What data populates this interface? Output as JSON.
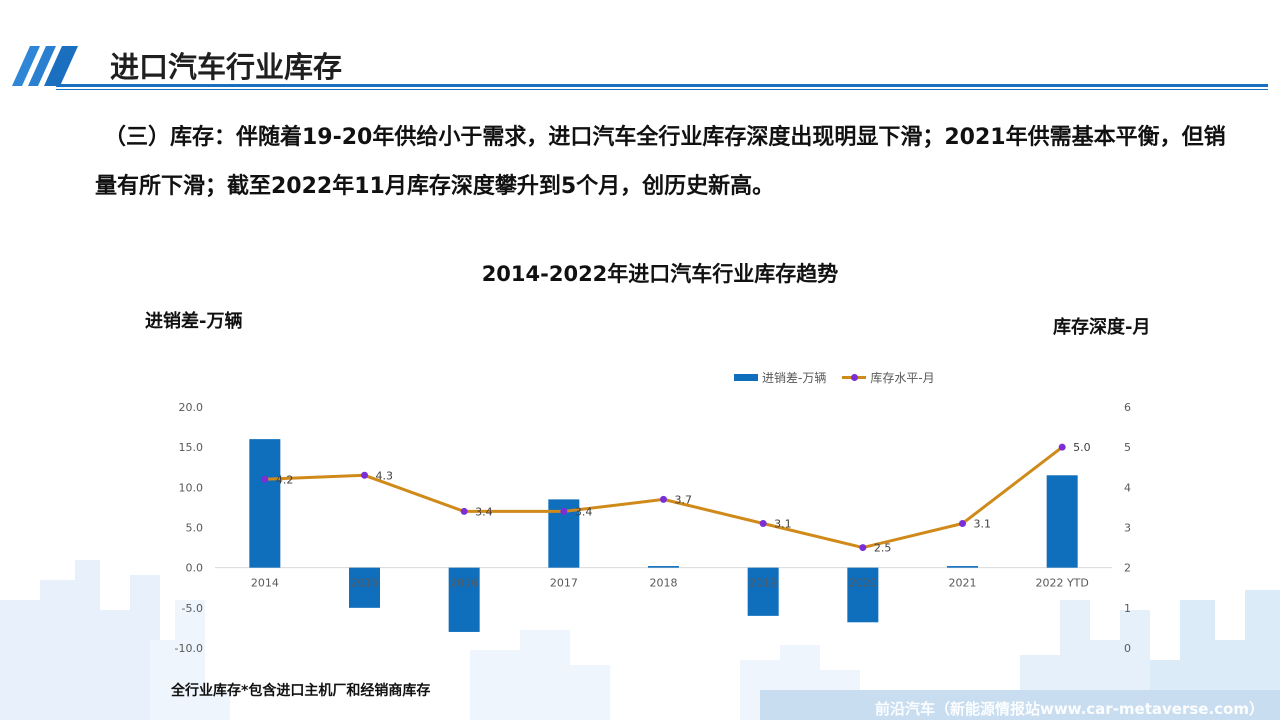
{
  "header": {
    "title": "进口汽车行业库存"
  },
  "summary": {
    "text": "（三）库存：伴随着19-20年供给小于需求，进口汽车全行业库存深度出现明显下滑；2021年供需基本平衡，但销量有所下滑；截至2022年11月库存深度攀升到5个月，创历史新高。"
  },
  "chart_data": {
    "type": "bar",
    "title": "2014-2022年进口汽车行业库存趋势",
    "ylabel": "进销差-万辆",
    "y2label": "库存深度-月",
    "categories": [
      "2014",
      "2015",
      "2016",
      "2017",
      "2018",
      "2019",
      "2020",
      "2021",
      "2022 YTD"
    ],
    "ylim": [
      -10,
      20
    ],
    "y_ticks": [
      "-10.0",
      "-5.0",
      "0.0",
      "5.0",
      "10.0",
      "15.0",
      "20.0"
    ],
    "y2lim": [
      0,
      6
    ],
    "y2_ticks": [
      "0",
      "1",
      "2",
      "3",
      "4",
      "5",
      "6"
    ],
    "legend_position": "top-right",
    "series": [
      {
        "name": "进销差-万辆",
        "type": "bar",
        "color": "#0f6fbd",
        "values": [
          16.0,
          -5.0,
          -8.0,
          8.5,
          0.2,
          -6.0,
          -6.8,
          0.2,
          11.5
        ]
      },
      {
        "name": "库存水平-月",
        "type": "line",
        "color": "#d08a1a",
        "marker_color": "#7a2fd6",
        "axis": "right",
        "values": [
          4.2,
          4.3,
          3.4,
          3.4,
          3.7,
          3.1,
          2.5,
          3.1,
          5.0
        ],
        "labels": [
          "4.2",
          "4.3",
          "3.4",
          "3.4",
          "3.7",
          "3.1",
          "2.5",
          "3.1",
          "5.0"
        ]
      }
    ]
  },
  "footnote": "全行业库存*包含进口主机厂和经销商库存",
  "watermark": "前沿汽车（新能源情报站www.car-metaverse.com）"
}
